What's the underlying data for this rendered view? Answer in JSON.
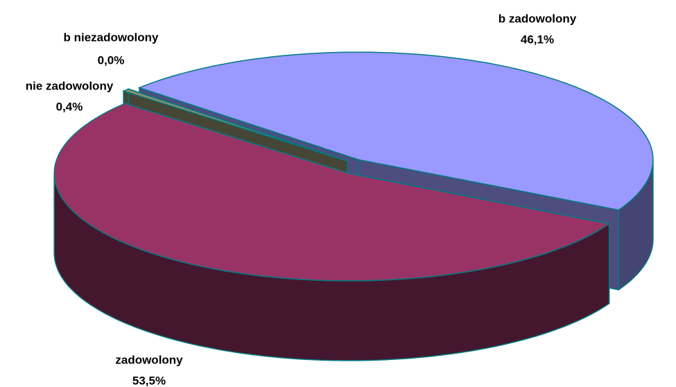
{
  "chart_data": {
    "type": "pie3d",
    "categories": [
      "b zadowolony",
      "zadowolony",
      "nie zadowolony",
      "b niezadowolony"
    ],
    "values": [
      46.1,
      53.5,
      0.4,
      0.0
    ],
    "value_labels": [
      "46,1%",
      "53,5%",
      "0,4%",
      "0,0%"
    ],
    "colors": [
      "#9999ff",
      "#993366",
      "#8c8c6c",
      "#ffffcc"
    ]
  }
}
